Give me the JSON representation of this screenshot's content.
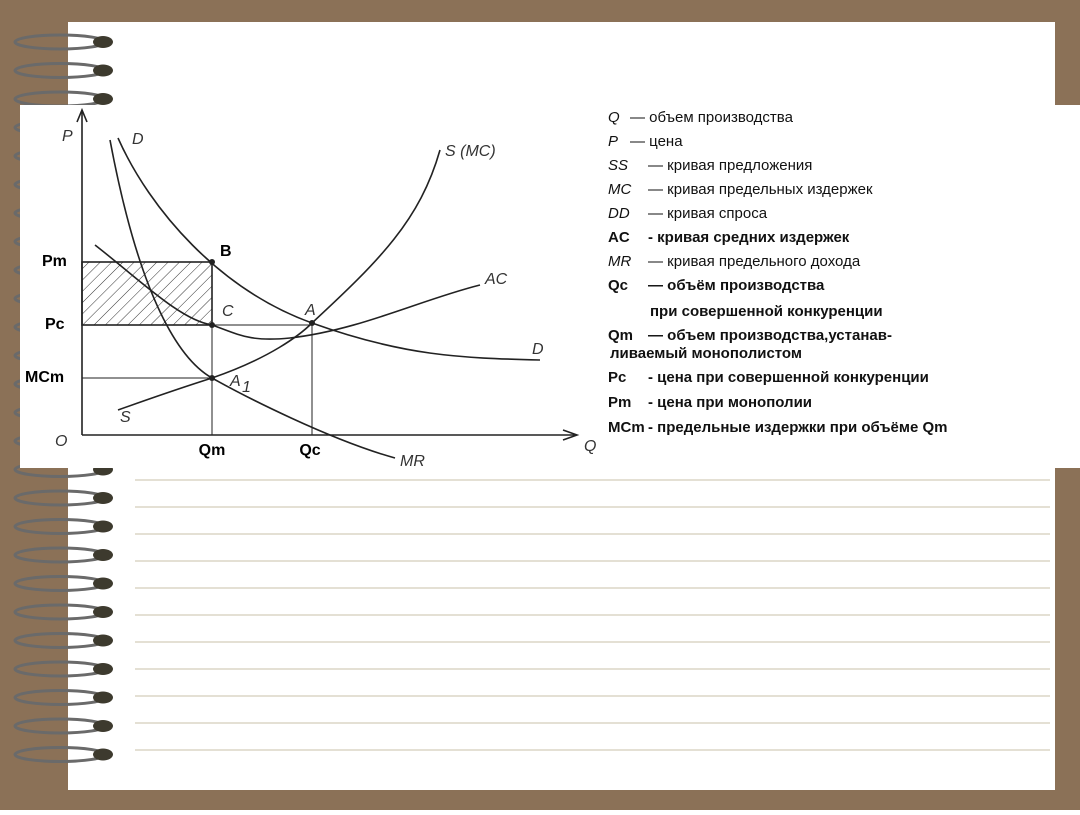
{
  "graph": {
    "axis_labels": {
      "p": "P",
      "q": "Q",
      "origin": "O"
    },
    "price_labels": {
      "pm": "Pm",
      "pc": "Pc",
      "mcm": "MCm"
    },
    "quantity_labels": {
      "qm": "Qm",
      "qc": "Qc"
    },
    "curve_labels": {
      "d_top": "D",
      "d_bottom": "D",
      "s_mc": "S (MC)",
      "ac": "AC",
      "mr": "MR",
      "s": "S"
    },
    "point_labels": {
      "b": "B",
      "c": "C",
      "a": "A",
      "a1": "A",
      "a1_sub": "1"
    }
  },
  "legend": [
    {
      "term": "Q",
      "lines": [
        "— объем производства"
      ]
    },
    {
      "term": "P",
      "lines": [
        "— цена"
      ]
    },
    {
      "term": "SS",
      "lines": [
        "— кривая предложения"
      ]
    },
    {
      "term": "MC",
      "lines": [
        "— кривая предельных издержек"
      ]
    },
    {
      "term": "DD",
      "lines": [
        "— кривая спроса"
      ]
    },
    {
      "term": "AC",
      "lines": [
        "- кривая средних издержек"
      ]
    },
    {
      "term": "MR",
      "lines": [
        "— кривая предельного дохода"
      ]
    },
    {
      "term": "Qc",
      "lines": [
        "— объём производства",
        "при совершенной конкуренции"
      ]
    },
    {
      "term": "Qm",
      "lines": [
        "— объем производства,устанав-",
        "ливаемый монополистом"
      ]
    },
    {
      "term": "Pc",
      "lines": [
        "- цена при совершенной конкуренции"
      ]
    },
    {
      "term": "Pm",
      "lines": [
        "- цена при монополии"
      ]
    },
    {
      "term": "MCm",
      "lines": [
        "- предельные издержки при объёме Qm"
      ]
    }
  ]
}
